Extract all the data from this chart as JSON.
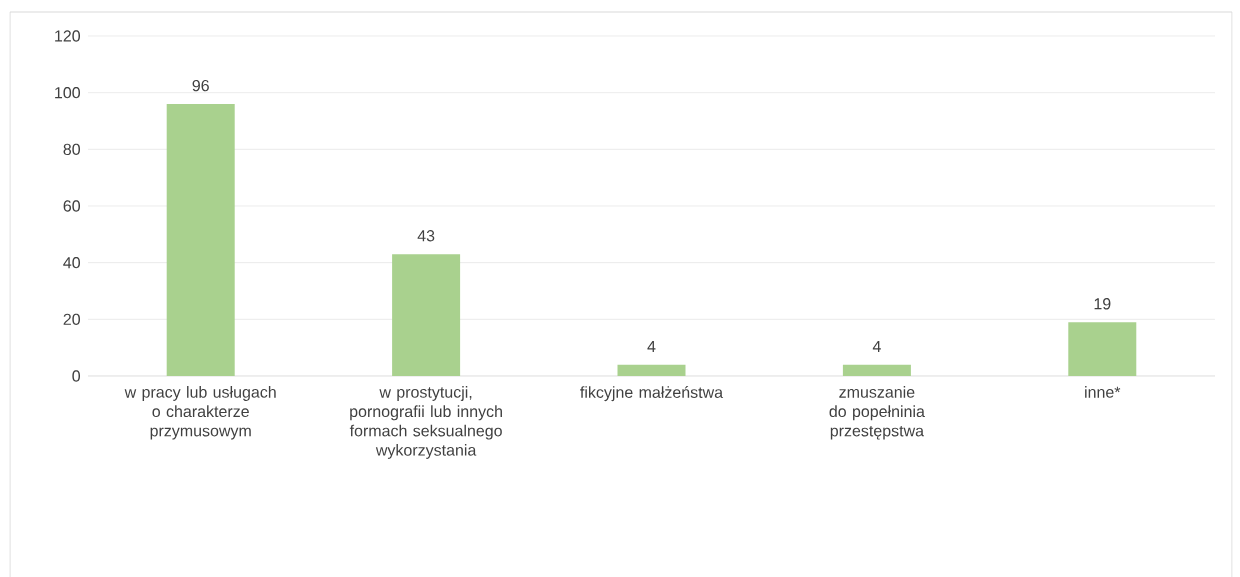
{
  "chart_data": {
    "type": "bar",
    "categories": [
      "w pracy lub usługach o charakterze przymusowym",
      "w prostytucji, pornografii lub innych formach seksualnego wykorzystania",
      "fikcyjne małżeństwa",
      "zmuszanie do popełninia przestępstwa",
      "inne*"
    ],
    "values": [
      96,
      43,
      4,
      4,
      19
    ],
    "color": "#a9d18e",
    "ylim": [
      0,
      120
    ],
    "yticks": [
      0,
      20,
      40,
      60,
      80,
      100,
      120
    ],
    "grid": "y",
    "data_labels": true
  }
}
